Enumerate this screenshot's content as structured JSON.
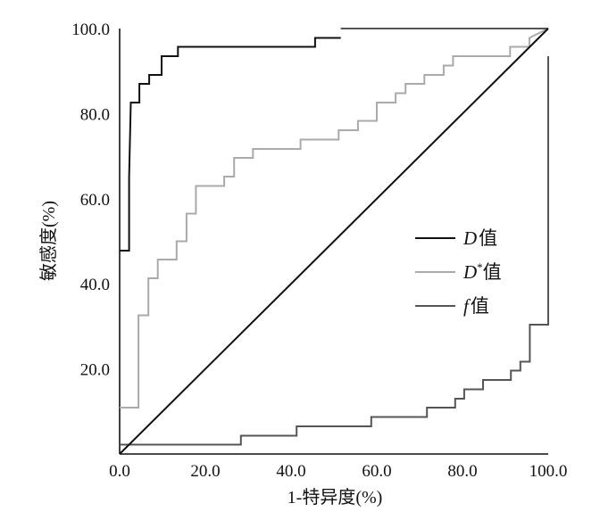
{
  "chart_data": {
    "type": "line",
    "title": "",
    "xlabel": "1-特异度(%)",
    "ylabel": "敏感度(%)",
    "xlim": [
      0,
      100
    ],
    "ylim": [
      0,
      100
    ],
    "x_ticks": [
      "0.0",
      "20.0",
      "40.0",
      "60.0",
      "80.0",
      "100.0"
    ],
    "y_ticks": [
      "20.0",
      "40.0",
      "60.0",
      "80.0",
      "100.0"
    ],
    "grid": false,
    "legend_position": "right",
    "series": [
      {
        "name": "D值",
        "legend": {
          "symbol": "D",
          "suffix": "值"
        },
        "color": "#111111",
        "points": [
          [
            0,
            47.8
          ],
          [
            2.2,
            47.8
          ],
          [
            2.2,
            65
          ],
          [
            2.6,
            82.6
          ],
          [
            4.6,
            82.6
          ],
          [
            4.6,
            87
          ],
          [
            6.9,
            87
          ],
          [
            6.9,
            89.1
          ],
          [
            9.8,
            89.1
          ],
          [
            9.8,
            93.5
          ],
          [
            13.6,
            93.5
          ],
          [
            13.6,
            95.7
          ],
          [
            45.6,
            95.7
          ],
          [
            45.6,
            97.8
          ],
          [
            51.6,
            97.8
          ]
        ]
      },
      {
        "name": "D*值",
        "legend": {
          "symbol": "D",
          "sup": "*",
          "suffix": "值"
        },
        "color": "#aaaaaa",
        "points": [
          [
            0,
            10.9
          ],
          [
            4.4,
            10.9
          ],
          [
            4.4,
            32.6
          ],
          [
            6.7,
            32.6
          ],
          [
            6.7,
            41.3
          ],
          [
            8.9,
            41.3
          ],
          [
            8.9,
            45.7
          ],
          [
            13.3,
            45.7
          ],
          [
            13.3,
            50
          ],
          [
            15.6,
            50
          ],
          [
            15.6,
            56.5
          ],
          [
            17.8,
            56.5
          ],
          [
            17.8,
            63
          ],
          [
            24.4,
            63
          ],
          [
            24.4,
            65.2
          ],
          [
            26.7,
            65.2
          ],
          [
            26.7,
            69.6
          ],
          [
            31.1,
            69.6
          ],
          [
            31.1,
            71.7
          ],
          [
            42.2,
            71.7
          ],
          [
            42.2,
            73.9
          ],
          [
            51.1,
            73.9
          ],
          [
            51.1,
            76.1
          ],
          [
            55.6,
            76.1
          ],
          [
            55.6,
            78.3
          ],
          [
            60,
            78.3
          ],
          [
            60,
            82.6
          ],
          [
            64.4,
            82.6
          ],
          [
            64.4,
            84.8
          ],
          [
            66.7,
            84.8
          ],
          [
            66.7,
            87
          ],
          [
            71.1,
            87
          ],
          [
            71.1,
            89.1
          ],
          [
            75.6,
            89.1
          ],
          [
            75.6,
            91.3
          ],
          [
            77.8,
            91.3
          ],
          [
            77.8,
            93.5
          ],
          [
            91.1,
            93.5
          ],
          [
            91.1,
            95.7
          ],
          [
            95.6,
            95.7
          ],
          [
            95.6,
            97.8
          ],
          [
            100,
            100
          ]
        ]
      },
      {
        "name": "f值",
        "legend": {
          "symbol": "f",
          "suffix": "值"
        },
        "color": "#555555",
        "points": [
          [
            0,
            2.2
          ],
          [
            28.3,
            2.2
          ],
          [
            28.3,
            4.3
          ],
          [
            41.3,
            4.3
          ],
          [
            41.3,
            6.5
          ],
          [
            58.7,
            6.5
          ],
          [
            58.7,
            8.7
          ],
          [
            71.7,
            8.7
          ],
          [
            71.7,
            10.9
          ],
          [
            78.3,
            10.9
          ],
          [
            78.3,
            13
          ],
          [
            80.4,
            13
          ],
          [
            80.4,
            15.2
          ],
          [
            84.8,
            15.2
          ],
          [
            84.8,
            17.4
          ],
          [
            91.3,
            17.4
          ],
          [
            91.3,
            19.6
          ],
          [
            93.5,
            19.6
          ],
          [
            93.5,
            21.7
          ],
          [
            95.7,
            21.7
          ],
          [
            95.7,
            30.4
          ],
          [
            100,
            30.4
          ],
          [
            100,
            93.5
          ]
        ]
      },
      {
        "name": "",
        "color": "#555555",
        "points": [
          [
            51.6,
            100
          ],
          [
            100,
            100
          ]
        ]
      },
      {
        "name": "",
        "color": "#111111",
        "points": [
          [
            0,
            0
          ],
          [
            100,
            100
          ]
        ]
      }
    ]
  }
}
